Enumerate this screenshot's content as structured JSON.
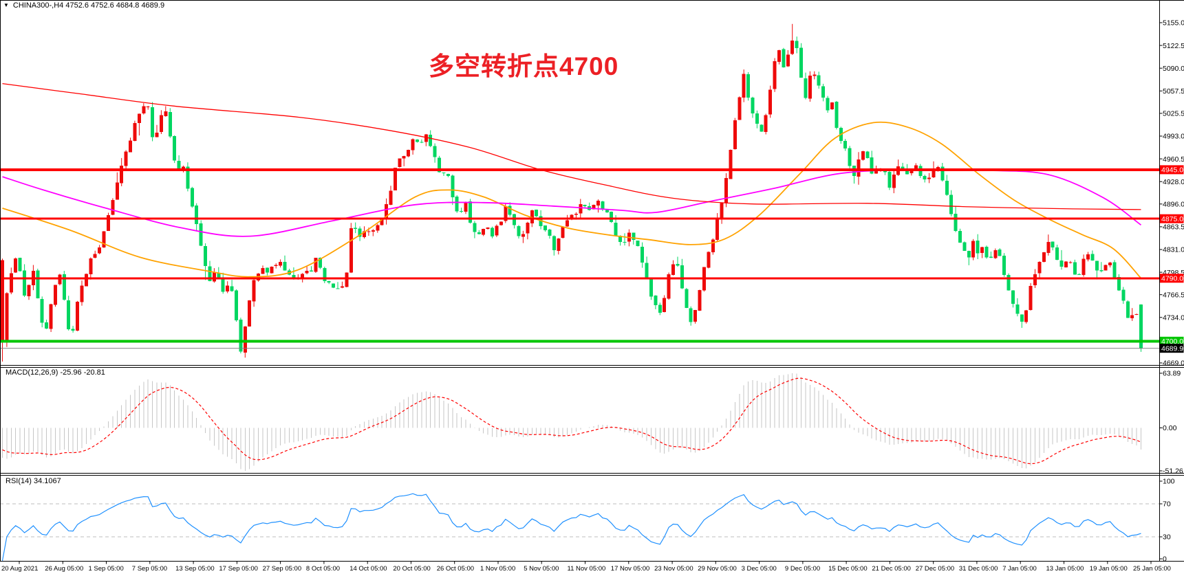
{
  "title": {
    "dropdown_icon": "▼",
    "text": "CHINA300-,H4  4752.6 4752.6 4684.8 4689.9"
  },
  "annotation": {
    "text": "多空转折点4700",
    "color": "#ec2025"
  },
  "colors": {
    "background": "#ffffff",
    "border": "#000000",
    "text": "#000000",
    "candle_up": "#ee0a0a",
    "candle_down": "#00d661",
    "ma_fast": "#ffa200",
    "ma_mid": "#ff00ff",
    "ma_slow": "#ff0000",
    "hline_red": "#fe0000",
    "hline_green": "#00c600",
    "current_price_line": "#808080",
    "current_tag_bg": "#000000",
    "tag_text": "#ffffff",
    "macd_hist": "#c6c6c6",
    "macd_signal": "#ff0000",
    "rsi_line": "#1e90ff",
    "rsi_level": "#bdbdbd"
  },
  "chart_data": {
    "type": "candlestick",
    "symbol": "CHINA300-",
    "timeframe": "H4",
    "last_ohlc": {
      "open": 4752.6,
      "high": 4752.6,
      "low": 4684.8,
      "close": 4689.9
    },
    "left_edge_candle": {
      "open": 4816,
      "high": 4818,
      "low": 4671,
      "close": 4698
    },
    "y_axis": {
      "tick_labels": [
        "5155.0",
        "5122.5",
        "5090.0",
        "5057.5",
        "5025.5",
        "4993.0",
        "4960.5",
        "4928.0",
        "4896.0",
        "4863.5",
        "4831.0",
        "4798.5",
        "4766.5",
        "4734.0",
        "4669.0"
      ],
      "range": [
        4666,
        5187
      ]
    },
    "x_axis": {
      "labels": [
        "20 Aug 2021",
        "26 Aug 05:00",
        "1 Sep 05:00",
        "7 Sep 05:00",
        "13 Sep 05:00",
        "17 Sep 05:00",
        "27 Sep 05:00",
        "8 Oct 05:00",
        "14 Oct 05:00",
        "20 Oct 05:00",
        "26 Oct 05:00",
        "1 Nov 05:00",
        "5 Nov 05:00",
        "11 Nov 05:00",
        "17 Nov 05:00",
        "23 Nov 05:00",
        "29 Nov 05:00",
        "3 Dec 05:00",
        "9 Dec 05:00",
        "15 Dec 05:00",
        "21 Dec 05:00",
        "27 Dec 05:00",
        "31 Dec 05:00",
        "7 Jan 05:00",
        "13 Jan 05:00",
        "19 Jan 05:00",
        "25 Jan 05:00"
      ]
    },
    "price_path": [
      [
        0,
        4810
      ],
      [
        0.003,
        4755
      ],
      [
        0.0073,
        4800
      ],
      [
        0.0133,
        4818
      ],
      [
        0.0193,
        4770
      ],
      [
        0.0272,
        4800
      ],
      [
        0.0332,
        4745
      ],
      [
        0.0375,
        4700
      ],
      [
        0.0435,
        4760
      ],
      [
        0.0495,
        4798
      ],
      [
        0.0556,
        4745
      ],
      [
        0.0604,
        4698
      ],
      [
        0.0677,
        4770
      ],
      [
        0.0755,
        4810
      ],
      [
        0.0846,
        4825
      ],
      [
        0.0918,
        4868
      ],
      [
        0.0985,
        4910
      ],
      [
        0.1057,
        4955
      ],
      [
        0.1136,
        4995
      ],
      [
        0.1208,
        5030
      ],
      [
        0.1275,
        5042
      ],
      [
        0.1329,
        4985
      ],
      [
        0.139,
        5018
      ],
      [
        0.1438,
        5032
      ],
      [
        0.1492,
        4975
      ],
      [
        0.1547,
        4940
      ],
      [
        0.1595,
        4952
      ],
      [
        0.1644,
        4905
      ],
      [
        0.1704,
        4868
      ],
      [
        0.1764,
        4820
      ],
      [
        0.1825,
        4782
      ],
      [
        0.1885,
        4802
      ],
      [
        0.1934,
        4765
      ],
      [
        0.1994,
        4792
      ],
      [
        0.2054,
        4730
      ],
      [
        0.2097,
        4675
      ],
      [
        0.2151,
        4738
      ],
      [
        0.2211,
        4792
      ],
      [
        0.2272,
        4802
      ],
      [
        0.2332,
        4795
      ],
      [
        0.2393,
        4812
      ],
      [
        0.2453,
        4810
      ],
      [
        0.2514,
        4795
      ],
      [
        0.2574,
        4782
      ],
      [
        0.2634,
        4800
      ],
      [
        0.2695,
        4795
      ],
      [
        0.2755,
        4820
      ],
      [
        0.2816,
        4790
      ],
      [
        0.2876,
        4778
      ],
      [
        0.2949,
        4770
      ],
      [
        0.3021,
        4790
      ],
      [
        0.3069,
        4868
      ],
      [
        0.313,
        4848
      ],
      [
        0.319,
        4862
      ],
      [
        0.3251,
        4852
      ],
      [
        0.3311,
        4870
      ],
      [
        0.3372,
        4892
      ],
      [
        0.3432,
        4935
      ],
      [
        0.3492,
        4962
      ],
      [
        0.3553,
        4975
      ],
      [
        0.3613,
        4990
      ],
      [
        0.3662,
        4975
      ],
      [
        0.371,
        4995
      ],
      [
        0.3758,
        4985
      ],
      [
        0.3807,
        4955
      ],
      [
        0.3855,
        4930
      ],
      [
        0.3903,
        4945
      ],
      [
        0.3952,
        4908
      ],
      [
        0.4,
        4878
      ],
      [
        0.4061,
        4900
      ],
      [
        0.4121,
        4868
      ],
      [
        0.4181,
        4850
      ],
      [
        0.4242,
        4872
      ],
      [
        0.4302,
        4855
      ],
      [
        0.4363,
        4868
      ],
      [
        0.4423,
        4890
      ],
      [
        0.4483,
        4868
      ],
      [
        0.4544,
        4850
      ],
      [
        0.4604,
        4866
      ],
      [
        0.4665,
        4890
      ],
      [
        0.4725,
        4868
      ],
      [
        0.4785,
        4855
      ],
      [
        0.4846,
        4835
      ],
      [
        0.4906,
        4855
      ],
      [
        0.4967,
        4872
      ],
      [
        0.5027,
        4882
      ],
      [
        0.5087,
        4895
      ],
      [
        0.5148,
        4880
      ],
      [
        0.5208,
        4900
      ],
      [
        0.5269,
        4893
      ],
      [
        0.5329,
        4878
      ],
      [
        0.5389,
        4855
      ],
      [
        0.545,
        4830
      ],
      [
        0.551,
        4855
      ],
      [
        0.5571,
        4838
      ],
      [
        0.5619,
        4818
      ],
      [
        0.5667,
        4788
      ],
      [
        0.5716,
        4758
      ],
      [
        0.5764,
        4732
      ],
      [
        0.5818,
        4770
      ],
      [
        0.5873,
        4802
      ],
      [
        0.5921,
        4815
      ],
      [
        0.5969,
        4778
      ],
      [
        0.6018,
        4742
      ],
      [
        0.606,
        4722
      ],
      [
        0.6108,
        4760
      ],
      [
        0.6157,
        4800
      ],
      [
        0.6217,
        4832
      ],
      [
        0.6277,
        4872
      ],
      [
        0.6338,
        4912
      ],
      [
        0.6392,
        4968
      ],
      [
        0.6453,
        5035
      ],
      [
        0.6507,
        5082
      ],
      [
        0.6562,
        5045
      ],
      [
        0.6622,
        5008
      ],
      [
        0.6682,
        5000
      ],
      [
        0.6731,
        5042
      ],
      [
        0.6779,
        5098
      ],
      [
        0.6827,
        5122
      ],
      [
        0.6876,
        5085
      ],
      [
        0.6924,
        5138
      ],
      [
        0.6966,
        5125
      ],
      [
        0.7015,
        5080
      ],
      [
        0.7063,
        5045
      ],
      [
        0.7105,
        5092
      ],
      [
        0.7154,
        5078
      ],
      [
        0.7202,
        5045
      ],
      [
        0.725,
        5030
      ],
      [
        0.7293,
        5042
      ],
      [
        0.7335,
        5000
      ],
      [
        0.7383,
        4980
      ],
      [
        0.7432,
        4958
      ],
      [
        0.7474,
        4930
      ],
      [
        0.7517,
        4956
      ],
      [
        0.7565,
        4976
      ],
      [
        0.7613,
        4950
      ],
      [
        0.7655,
        4935
      ],
      [
        0.7704,
        4952
      ],
      [
        0.7752,
        4940
      ],
      [
        0.7795,
        4920
      ],
      [
        0.7843,
        4942
      ],
      [
        0.7885,
        4952
      ],
      [
        0.7934,
        4930
      ],
      [
        0.7976,
        4946
      ],
      [
        0.8024,
        4956
      ],
      [
        0.8066,
        4938
      ],
      [
        0.8115,
        4925
      ],
      [
        0.8157,
        4946
      ],
      [
        0.8205,
        4950
      ],
      [
        0.8248,
        4930
      ],
      [
        0.8296,
        4905
      ],
      [
        0.8338,
        4880
      ],
      [
        0.8386,
        4852
      ],
      [
        0.8429,
        4830
      ],
      [
        0.8477,
        4820
      ],
      [
        0.8525,
        4842
      ],
      [
        0.8568,
        4826
      ],
      [
        0.8616,
        4836
      ],
      [
        0.8664,
        4812
      ],
      [
        0.8713,
        4832
      ],
      [
        0.8755,
        4820
      ],
      [
        0.8803,
        4795
      ],
      [
        0.8846,
        4770
      ],
      [
        0.8894,
        4745
      ],
      [
        0.8936,
        4722
      ],
      [
        0.8985,
        4738
      ],
      [
        0.9027,
        4772
      ],
      [
        0.9075,
        4802
      ],
      [
        0.9117,
        4818
      ],
      [
        0.9166,
        4838
      ],
      [
        0.9214,
        4845
      ],
      [
        0.9256,
        4820
      ],
      [
        0.9305,
        4800
      ],
      [
        0.9353,
        4822
      ],
      [
        0.9401,
        4802
      ],
      [
        0.9444,
        4792
      ],
      [
        0.9492,
        4812
      ],
      [
        0.9534,
        4826
      ],
      [
        0.9583,
        4812
      ],
      [
        0.9631,
        4796
      ],
      [
        0.9673,
        4802
      ],
      [
        0.9722,
        4812
      ],
      [
        0.977,
        4790
      ],
      [
        0.9813,
        4775
      ],
      [
        0.9861,
        4748
      ],
      [
        0.9903,
        4722
      ],
      [
        0.9952,
        4752
      ],
      [
        1,
        4690
      ]
    ],
    "overlays": [
      {
        "name": "fast-ma",
        "color_key": "ma_fast",
        "width": 1.8,
        "path": [
          [
            0,
            4890
          ],
          [
            0.0604,
            4858
          ],
          [
            0.1208,
            4820
          ],
          [
            0.1813,
            4800
          ],
          [
            0.2175,
            4792
          ],
          [
            0.2598,
            4802
          ],
          [
            0.3142,
            4852
          ],
          [
            0.3625,
            4906
          ],
          [
            0.3927,
            4916
          ],
          [
            0.423,
            4906
          ],
          [
            0.4592,
            4880
          ],
          [
            0.4955,
            4862
          ],
          [
            0.5317,
            4852
          ],
          [
            0.5679,
            4845
          ],
          [
            0.6042,
            4838
          ],
          [
            0.6344,
            4846
          ],
          [
            0.6647,
            4880
          ],
          [
            0.7009,
            4940
          ],
          [
            0.7311,
            4990
          ],
          [
            0.7643,
            5012
          ],
          [
            0.7946,
            5006
          ],
          [
            0.8248,
            4982
          ],
          [
            0.858,
            4938
          ],
          [
            0.8882,
            4902
          ],
          [
            0.9184,
            4875
          ],
          [
            0.9486,
            4852
          ],
          [
            0.9758,
            4832
          ],
          [
            1,
            4790
          ]
        ]
      },
      {
        "name": "mid-ma",
        "color_key": "ma_mid",
        "width": 1.8,
        "path": [
          [
            0,
            4935
          ],
          [
            0.036,
            4916
          ],
          [
            0.091,
            4890
          ],
          [
            0.157,
            4862
          ],
          [
            0.2175,
            4850
          ],
          [
            0.29,
            4872
          ],
          [
            0.3625,
            4895
          ],
          [
            0.423,
            4898
          ],
          [
            0.4834,
            4893
          ],
          [
            0.5438,
            4887
          ],
          [
            0.574,
            4884
          ],
          [
            0.6224,
            4900
          ],
          [
            0.6767,
            4918
          ],
          [
            0.7372,
            4940
          ],
          [
            0.8036,
            4945
          ],
          [
            0.864,
            4944
          ],
          [
            0.9184,
            4938
          ],
          [
            0.9668,
            4905
          ],
          [
            1,
            4866
          ]
        ]
      },
      {
        "name": "slow-ma",
        "color_key": "ma_slow",
        "width": 1.3,
        "path": [
          [
            0,
            5068
          ],
          [
            0.07,
            5053
          ],
          [
            0.15,
            5036
          ],
          [
            0.26,
            5020
          ],
          [
            0.34,
            5001
          ],
          [
            0.41,
            4977
          ],
          [
            0.4725,
            4945
          ],
          [
            0.53,
            4923
          ],
          [
            0.59,
            4904
          ],
          [
            0.66,
            4896
          ],
          [
            0.76,
            4897
          ],
          [
            0.85,
            4892
          ],
          [
            0.94,
            4889
          ],
          [
            1,
            4888
          ]
        ]
      }
    ],
    "hlines": [
      {
        "price": 4945.0,
        "label": "4945.0",
        "color_key": "hline_red",
        "thickness": 4
      },
      {
        "price": 4875.0,
        "label": "4875.0",
        "color_key": "hline_red",
        "thickness": 3
      },
      {
        "price": 4790.0,
        "label": "4790.0",
        "color_key": "hline_red",
        "thickness": 3
      },
      {
        "price": 4700.0,
        "label": "4700.0",
        "color_key": "hline_green",
        "thickness": 4
      }
    ],
    "current_price": {
      "value": 4689.9,
      "label": "4689.9"
    },
    "indicators": [
      {
        "id": "macd",
        "label": "MACD(12,26,9) -25.96 -20.81",
        "fast": 12,
        "slow": 26,
        "signal": 9,
        "current_macd": -25.96,
        "current_signal": -20.81,
        "axis_labels": [
          "63.89",
          "0.00",
          "-51.26"
        ],
        "axis_values": [
          63.89,
          0,
          -51.26
        ]
      },
      {
        "id": "rsi",
        "label": "RSI(14) 34.1067",
        "period": 14,
        "current": 34.1067,
        "axis_labels": [
          "100",
          "70",
          "30",
          "0"
        ],
        "axis_values": [
          100,
          70,
          30,
          0
        ],
        "levels": [
          70,
          30
        ]
      }
    ]
  }
}
